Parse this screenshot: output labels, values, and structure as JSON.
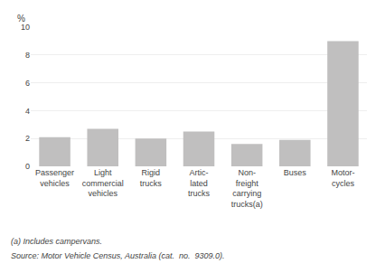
{
  "chart_data": {
    "type": "bar",
    "categories": [
      "Passenger\nvehicles",
      "Light\ncommercial\nvehicles",
      "Rigid\ntrucks",
      "Artic-\nlated\ntrucks",
      "Non-\nfreight\ncarrying\ntrucks(a)",
      "Buses",
      "Motor-\ncycles"
    ],
    "values": [
      2.1,
      2.7,
      2.0,
      2.5,
      1.6,
      1.9,
      9.0
    ],
    "color": "#c0bfbf",
    "ylim": [
      0,
      10
    ],
    "yticks": [
      0,
      2,
      4,
      6,
      8,
      10
    ],
    "grid": true,
    "ylabel": "%",
    "annotations": [
      "(a) Includes campervans.",
      "Source: Motor Vehicle Census, Australia (cat.  no.  9309.0)."
    ]
  }
}
